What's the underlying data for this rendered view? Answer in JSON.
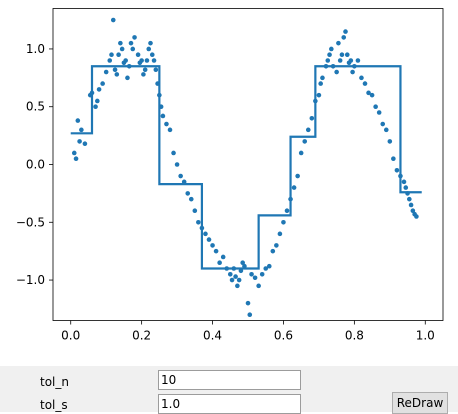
{
  "colors": {
    "series": "#1f77b4",
    "axis": "#000000",
    "panel": "#f0f0f0"
  },
  "chart_data": {
    "type": "scatter",
    "title": "",
    "xlabel": "",
    "ylabel": "",
    "xlim": [
      -0.05,
      1.05
    ],
    "ylim": [
      -1.35,
      1.35
    ],
    "grid": false,
    "xticks": [
      0.0,
      0.2,
      0.4,
      0.6,
      0.8,
      1.0
    ],
    "xtick_labels": [
      "0.0",
      "0.2",
      "0.4",
      "0.6",
      "0.8",
      "1.0"
    ],
    "yticks": [
      1.0,
      0.5,
      0.0,
      -0.5,
      -1.0
    ],
    "ytick_labels": [
      "1.0",
      "0.5",
      "0.0",
      "−0.5",
      "−1.0"
    ],
    "series": [
      {
        "kind": "scatter",
        "color": "#1f77b4",
        "x": [
          0.01,
          0.015,
          0.02,
          0.025,
          0.03,
          0.04,
          0.055,
          0.06,
          0.07,
          0.075,
          0.08,
          0.09,
          0.1,
          0.11,
          0.115,
          0.12,
          0.125,
          0.13,
          0.135,
          0.14,
          0.145,
          0.15,
          0.155,
          0.16,
          0.165,
          0.17,
          0.175,
          0.18,
          0.19,
          0.195,
          0.2,
          0.205,
          0.21,
          0.215,
          0.22,
          0.225,
          0.23,
          0.235,
          0.24,
          0.245,
          0.25,
          0.255,
          0.26,
          0.27,
          0.28,
          0.29,
          0.3,
          0.31,
          0.32,
          0.33,
          0.34,
          0.35,
          0.36,
          0.37,
          0.38,
          0.39,
          0.4,
          0.41,
          0.42,
          0.43,
          0.44,
          0.45,
          0.455,
          0.46,
          0.465,
          0.47,
          0.475,
          0.48,
          0.485,
          0.49,
          0.5,
          0.505,
          0.51,
          0.52,
          0.53,
          0.54,
          0.55,
          0.56,
          0.57,
          0.58,
          0.59,
          0.6,
          0.61,
          0.62,
          0.63,
          0.64,
          0.65,
          0.66,
          0.67,
          0.68,
          0.69,
          0.7,
          0.705,
          0.71,
          0.72,
          0.725,
          0.73,
          0.735,
          0.74,
          0.75,
          0.755,
          0.76,
          0.765,
          0.77,
          0.775,
          0.78,
          0.785,
          0.79,
          0.795,
          0.8,
          0.81,
          0.82,
          0.83,
          0.84,
          0.85,
          0.86,
          0.87,
          0.88,
          0.89,
          0.9,
          0.91,
          0.92,
          0.93,
          0.94,
          0.945,
          0.95,
          0.955,
          0.96,
          0.965,
          0.97,
          0.975
        ],
        "y": [
          0.1,
          0.05,
          0.38,
          0.2,
          0.3,
          0.18,
          0.6,
          0.62,
          0.5,
          0.55,
          0.65,
          0.7,
          0.8,
          0.9,
          0.95,
          1.25,
          0.82,
          0.78,
          0.95,
          1.05,
          1.0,
          0.88,
          0.9,
          0.75,
          0.85,
          1.05,
          1.0,
          1.1,
          0.95,
          0.88,
          0.9,
          0.78,
          0.82,
          0.9,
          1.0,
          1.05,
          0.95,
          0.9,
          0.82,
          0.7,
          0.6,
          0.5,
          0.42,
          0.35,
          0.3,
          0.1,
          0.0,
          -0.1,
          -0.15,
          -0.25,
          -0.3,
          -0.4,
          -0.5,
          -0.55,
          -0.6,
          -0.65,
          -0.7,
          -0.75,
          -0.85,
          -0.8,
          -0.9,
          -0.95,
          -1.0,
          -0.9,
          -0.97,
          -1.05,
          -1.0,
          -0.92,
          -0.85,
          -0.88,
          -1.2,
          -1.3,
          -0.95,
          -0.98,
          -1.05,
          -0.95,
          -0.9,
          -0.88,
          -0.75,
          -0.7,
          -0.6,
          -0.5,
          -0.4,
          -0.3,
          -0.2,
          -0.1,
          0.1,
          0.2,
          0.3,
          0.4,
          0.55,
          0.6,
          0.7,
          0.75,
          0.85,
          0.9,
          0.95,
          1.0,
          0.85,
          0.8,
          1.05,
          0.9,
          0.95,
          1.1,
          1.15,
          0.95,
          0.88,
          0.9,
          0.8,
          0.85,
          0.9,
          0.75,
          0.7,
          0.62,
          0.6,
          0.5,
          0.45,
          0.35,
          0.3,
          0.2,
          0.05,
          -0.05,
          -0.1,
          -0.15,
          -0.2,
          -0.25,
          -0.3,
          -0.35,
          -0.4,
          -0.43,
          -0.45
        ]
      },
      {
        "kind": "step",
        "color": "#1f77b4",
        "x": [
          0.0,
          0.06,
          0.06,
          0.25,
          0.25,
          0.37,
          0.37,
          0.53,
          0.53,
          0.62,
          0.62,
          0.69,
          0.69,
          0.93,
          0.93,
          0.99
        ],
        "y": [
          0.27,
          0.27,
          0.85,
          0.85,
          -0.17,
          -0.17,
          -0.9,
          -0.9,
          -0.44,
          -0.44,
          0.24,
          0.24,
          0.85,
          0.85,
          -0.24,
          -0.24
        ]
      }
    ]
  },
  "controls": {
    "tol_n": {
      "label": "tol_n",
      "value": "10"
    },
    "tol_s": {
      "label": "tol_s",
      "value": "1.0"
    },
    "redraw_label": "ReDraw"
  }
}
